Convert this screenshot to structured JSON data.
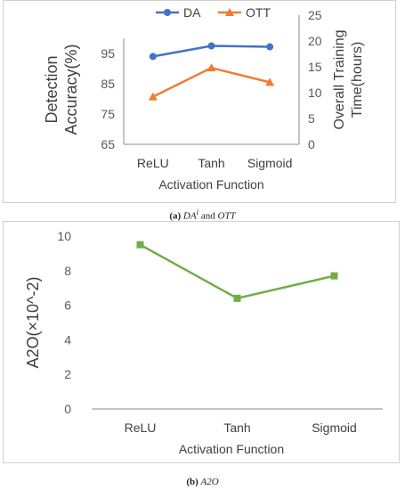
{
  "chart_data": [
    {
      "type": "line",
      "categories": [
        "ReLU",
        "Tanh",
        "Sigmoid"
      ],
      "xlabel": "Activation Function",
      "ylabel_left": "Detection Accuracy(%)",
      "ylabel_left_lines": [
        "Detection",
        "Accuracy(%)"
      ],
      "ylabel_right": "Overall Training Time(hours)",
      "ylabel_right_lines": [
        "Overall Training",
        "Time(hours)"
      ],
      "ylim_left": [
        65,
        100
      ],
      "yticks_left": [
        65,
        75,
        85,
        95
      ],
      "ylim_right": [
        0,
        25
      ],
      "yticks_right": [
        0,
        5,
        10,
        15,
        20,
        25
      ],
      "legend_position": "top",
      "grid": false,
      "series": [
        {
          "name": "DA",
          "axis": "left",
          "marker": "circle",
          "color": "#4472c4",
          "values": [
            94.0,
            97.5,
            97.2
          ]
        },
        {
          "name": "OTT",
          "axis": "right",
          "marker": "triangle",
          "color": "#ed7d31",
          "values": [
            9.2,
            14.8,
            12.0
          ]
        }
      ]
    },
    {
      "type": "line",
      "categories": [
        "ReLU",
        "Tanh",
        "Sigmoid"
      ],
      "xlabel": "Activation Function",
      "ylabel": "A2O(×10^-2)",
      "ylim": [
        0,
        10
      ],
      "yticks": [
        0,
        2,
        4,
        6,
        8,
        10
      ],
      "grid": false,
      "series": [
        {
          "name": "",
          "marker": "square",
          "color": "#70ad47",
          "values": [
            9.5,
            6.4,
            7.7
          ]
        }
      ]
    }
  ],
  "captions": {
    "a": {
      "label": "(a)",
      "text_parts": [
        "DA",
        "i",
        " and ",
        "OTT"
      ]
    },
    "b": {
      "label": "(b)",
      "text": "A2O"
    }
  }
}
